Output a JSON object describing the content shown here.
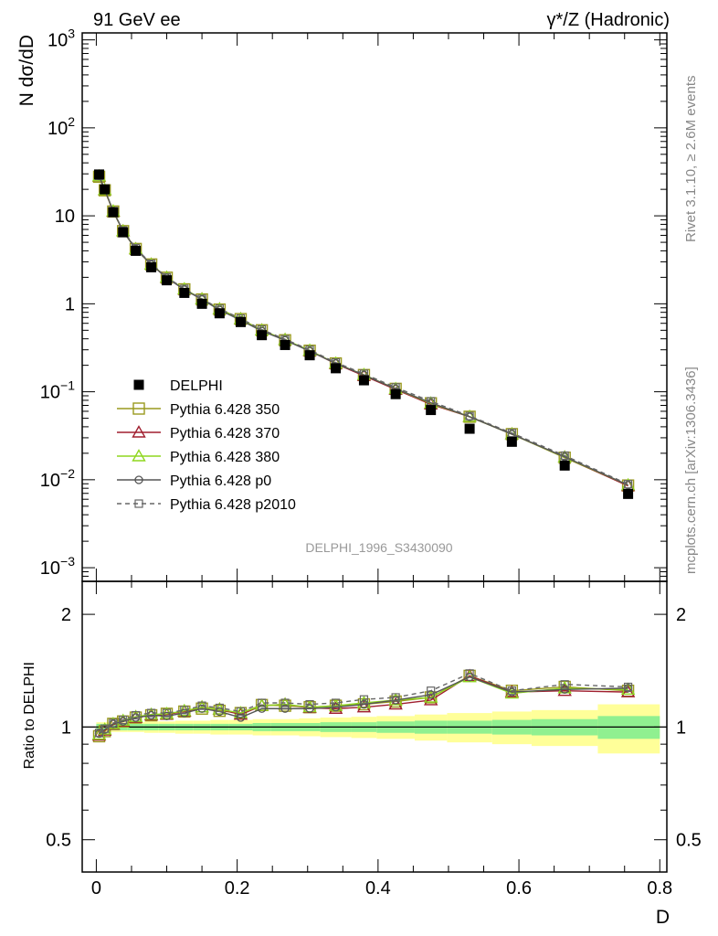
{
  "header": {
    "left_title": "91 GeV ee",
    "right_title": "γ*/Z (Hadronic)"
  },
  "side_labels": {
    "rivet": "Rivet 3.1.10, ≥ 2.6M events",
    "mcplots": "mcplots.cern.ch [arXiv:1306.3436]"
  },
  "watermark": "DELPHI_1996_S3430090",
  "colors": {
    "data": "#000000",
    "p350": "#9a9a1f",
    "p370": "#a01f2f",
    "p380": "#8fd71f",
    "p0": "#555555",
    "p2010": "#666666",
    "band_stat": "#90f090",
    "band_total": "#ffff99"
  },
  "chart_data": [
    {
      "type": "scatter",
      "panel": "main",
      "ylabel": "N dσ/dD",
      "xlabel": "",
      "log_y": true,
      "ylim": [
        0.0007,
        1200
      ],
      "xlim": [
        -0.02,
        0.81
      ],
      "y_ticks": [
        {
          "value": 1000,
          "label": "10",
          "exp": "3"
        },
        {
          "value": 100,
          "label": "10",
          "exp": "2"
        },
        {
          "value": 10,
          "label": "10",
          "exp": ""
        },
        {
          "value": 1,
          "label": "1",
          "exp": ""
        },
        {
          "value": 0.1,
          "label": "10",
          "exp": "−1"
        },
        {
          "value": 0.01,
          "label": "10",
          "exp": "−2"
        },
        {
          "value": 0.001,
          "label": "10",
          "exp": "−3"
        }
      ],
      "x": [
        0.004,
        0.012,
        0.024,
        0.038,
        0.056,
        0.078,
        0.1,
        0.125,
        0.15,
        0.175,
        0.205,
        0.235,
        0.268,
        0.303,
        0.34,
        0.38,
        0.425,
        0.475,
        0.53,
        0.59,
        0.665,
        0.755
      ],
      "legend_placement": "lower-left",
      "series": [
        {
          "name": "DELPHI",
          "key": "data",
          "marker": "filled-square",
          "line": "none",
          "values": [
            29.5,
            20.0,
            11.0,
            6.5,
            4.0,
            2.6,
            1.85,
            1.33,
            1.0,
            0.78,
            0.62,
            0.44,
            0.34,
            0.26,
            0.185,
            0.135,
            0.094,
            0.062,
            0.038,
            0.027,
            0.0145,
            0.0069
          ]
        },
        {
          "name": "Pythia 6.428 350",
          "key": "p350",
          "marker": "open-square",
          "line": "solid",
          "values": [
            27.8,
            19.5,
            11.2,
            6.7,
            4.2,
            2.8,
            1.98,
            1.46,
            1.12,
            0.86,
            0.67,
            0.5,
            0.385,
            0.293,
            0.21,
            0.155,
            0.108,
            0.074,
            0.052,
            0.033,
            0.0178,
            0.0086
          ]
        },
        {
          "name": "Pythia 6.428 370",
          "key": "p370",
          "marker": "open-triangle",
          "line": "solid",
          "values": [
            28.0,
            19.6,
            11.2,
            6.7,
            4.2,
            2.8,
            1.98,
            1.46,
            1.13,
            0.87,
            0.67,
            0.5,
            0.39,
            0.292,
            0.208,
            0.152,
            0.106,
            0.072,
            0.052,
            0.033,
            0.018,
            0.0085
          ]
        },
        {
          "name": "Pythia 6.428 380",
          "key": "p380",
          "marker": "open-triangle",
          "line": "solid",
          "values": [
            28.2,
            19.7,
            11.3,
            6.7,
            4.2,
            2.8,
            1.99,
            1.47,
            1.13,
            0.87,
            0.67,
            0.5,
            0.39,
            0.295,
            0.21,
            0.156,
            0.108,
            0.074,
            0.052,
            0.033,
            0.018,
            0.0087
          ]
        },
        {
          "name": "Pythia 6.428 p0",
          "key": "p0",
          "marker": "open-circle",
          "line": "solid",
          "values": [
            28.4,
            19.8,
            11.3,
            6.7,
            4.2,
            2.8,
            1.97,
            1.45,
            1.12,
            0.85,
            0.65,
            0.49,
            0.385,
            0.29,
            0.21,
            0.155,
            0.108,
            0.075,
            0.052,
            0.033,
            0.0182,
            0.0087
          ]
        },
        {
          "name": "Pythia 6.428 p2010",
          "key": "p2010",
          "marker": "open-square-small",
          "line": "dashed",
          "values": [
            28.5,
            19.9,
            11.3,
            6.8,
            4.3,
            2.85,
            2.0,
            1.48,
            1.14,
            0.88,
            0.68,
            0.51,
            0.395,
            0.3,
            0.215,
            0.16,
            0.112,
            0.078,
            0.053,
            0.034,
            0.0188,
            0.0089
          ]
        }
      ]
    },
    {
      "type": "scatter",
      "panel": "ratio",
      "ylabel": "Ratio to DELPHI",
      "xlabel": "D",
      "log_y": true,
      "ylim": [
        0.41,
        2.45
      ],
      "xlim": [
        -0.02,
        0.81
      ],
      "y_ticks": [
        {
          "value": 2,
          "label": "2"
        },
        {
          "value": 1,
          "label": "1"
        },
        {
          "value": 0.5,
          "label": "0.5"
        }
      ],
      "x_ticks": [
        {
          "value": 0,
          "label": "0"
        },
        {
          "value": 0.2,
          "label": "0.2"
        },
        {
          "value": 0.4,
          "label": "0.4"
        },
        {
          "value": 0.6,
          "label": "0.6"
        },
        {
          "value": 0.8,
          "label": "0.8"
        }
      ],
      "bin_edges": [
        0.0,
        0.008,
        0.016,
        0.032,
        0.044,
        0.068,
        0.088,
        0.112,
        0.138,
        0.162,
        0.188,
        0.222,
        0.248,
        0.288,
        0.318,
        0.362,
        0.398,
        0.452,
        0.498,
        0.562,
        0.618,
        0.712,
        0.8
      ],
      "band_stat": [
        0.02,
        0.02,
        0.02,
        0.02,
        0.02,
        0.02,
        0.02,
        0.02,
        0.02,
        0.02,
        0.02,
        0.025,
        0.025,
        0.025,
        0.03,
        0.03,
        0.035,
        0.04,
        0.04,
        0.045,
        0.05,
        0.07
      ],
      "band_total": [
        0.03,
        0.03,
        0.03,
        0.03,
        0.03,
        0.035,
        0.035,
        0.04,
        0.04,
        0.045,
        0.045,
        0.05,
        0.05,
        0.055,
        0.06,
        0.065,
        0.07,
        0.08,
        0.09,
        0.1,
        0.11,
        0.15
      ],
      "series": [
        {
          "key": "p350",
          "values": [
            0.945,
            0.975,
            1.02,
            1.035,
            1.06,
            1.075,
            1.085,
            1.1,
            1.12,
            1.105,
            1.09,
            1.145,
            1.14,
            1.13,
            1.14,
            1.15,
            1.17,
            1.2,
            1.37,
            1.25,
            1.28,
            1.25
          ]
        },
        {
          "key": "p370",
          "values": [
            0.95,
            0.98,
            1.015,
            1.035,
            1.06,
            1.075,
            1.08,
            1.1,
            1.13,
            1.115,
            1.08,
            1.14,
            1.15,
            1.125,
            1.12,
            1.13,
            1.15,
            1.18,
            1.37,
            1.24,
            1.25,
            1.24
          ]
        },
        {
          "key": "p380",
          "values": [
            0.955,
            0.985,
            1.02,
            1.04,
            1.065,
            1.08,
            1.085,
            1.105,
            1.13,
            1.115,
            1.09,
            1.14,
            1.15,
            1.13,
            1.14,
            1.16,
            1.18,
            1.2,
            1.36,
            1.23,
            1.27,
            1.26
          ]
        },
        {
          "key": "p0",
          "values": [
            0.96,
            0.985,
            1.02,
            1.035,
            1.06,
            1.075,
            1.07,
            1.09,
            1.12,
            1.1,
            1.06,
            1.12,
            1.12,
            1.12,
            1.13,
            1.15,
            1.18,
            1.22,
            1.36,
            1.24,
            1.26,
            1.27
          ]
        },
        {
          "key": "p2010",
          "values": [
            0.965,
            0.99,
            1.025,
            1.045,
            1.075,
            1.09,
            1.09,
            1.11,
            1.14,
            1.125,
            1.1,
            1.16,
            1.16,
            1.15,
            1.16,
            1.185,
            1.2,
            1.25,
            1.39,
            1.25,
            1.3,
            1.28
          ]
        }
      ]
    }
  ]
}
